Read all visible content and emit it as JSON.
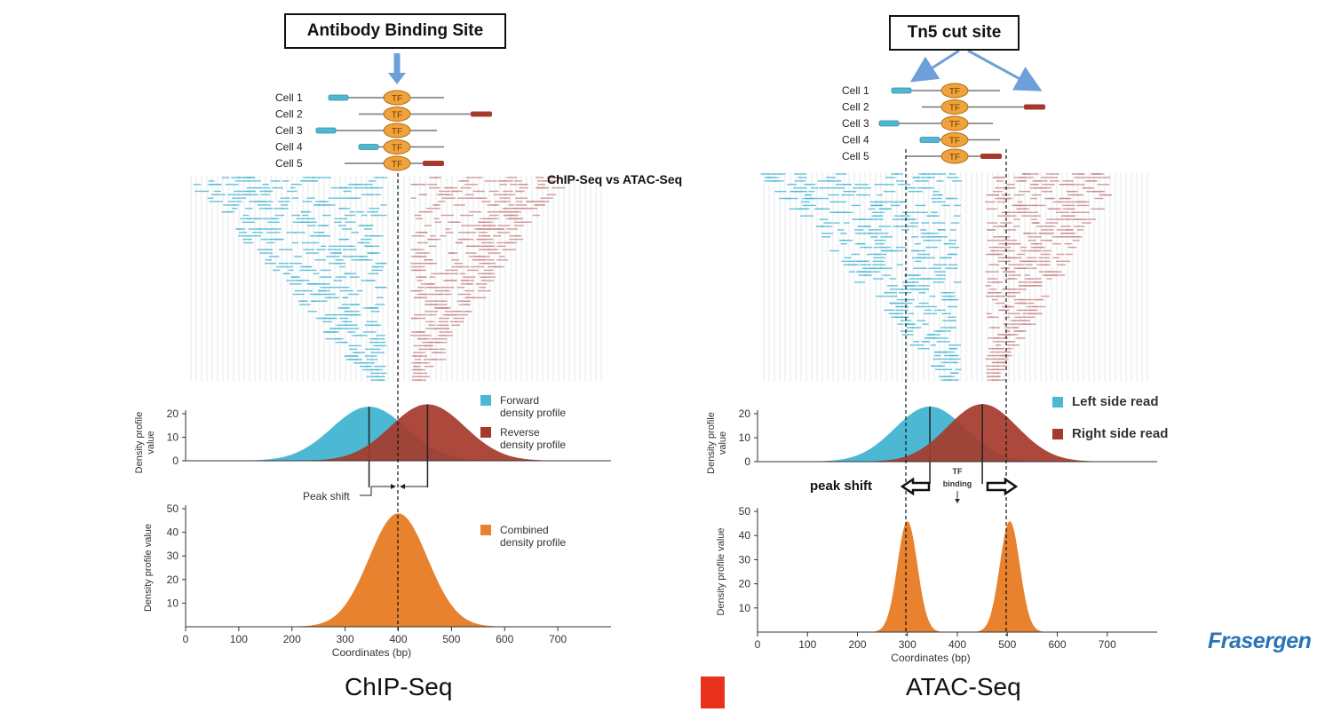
{
  "left": {
    "title_box": "Antibody Binding Site",
    "overlay_label": "ChIP-Seq vs ATAC-Seq",
    "cells": [
      "Cell 1",
      "Cell 2",
      "Cell 3",
      "Cell 4",
      "Cell 5"
    ],
    "tf_label": "TF",
    "legend_forward": [
      "Forward",
      "density profile"
    ],
    "legend_reverse": [
      "Reverse",
      "density profile"
    ],
    "legend_combined": [
      "Combined",
      "density profile"
    ],
    "density_ylabel": [
      "Density profile",
      "value"
    ],
    "combined_ylabel": "Density profile value",
    "peak_shift": "Peak shift",
    "xlabel": "Coordinates (bp)",
    "bottom_title": "ChIP-Seq"
  },
  "right": {
    "title_box": "Tn5 cut site",
    "cells": [
      "Cell 1",
      "Cell 2",
      "Cell 3",
      "Cell 4",
      "Cell 5"
    ],
    "tf_label": "TF",
    "legend_left": "Left side read",
    "legend_right": "Right side read",
    "density_ylabel": [
      "Density profile",
      "value"
    ],
    "combined_ylabel": "Density profile value",
    "peak_shift": "peak shift",
    "tf_binding": [
      "TF",
      "binding"
    ],
    "xlabel": "Coordinates (bp)",
    "bottom_title": "ATAC-Seq"
  },
  "density_ticks": [
    "0",
    "10",
    "20"
  ],
  "combined_ticks": [
    "10",
    "20",
    "30",
    "40",
    "50"
  ],
  "x_ticks": [
    "0",
    "100",
    "200",
    "300",
    "400",
    "500",
    "600",
    "700"
  ],
  "logo": "Frasergen",
  "colors": {
    "forward": "#4cb8d4",
    "reverse": "#a53a2b",
    "combined": "#e8822e",
    "tf_oval": "#f0a33c",
    "arrow": "#6f9fd8",
    "red_square": "#e8321e",
    "logo": "#2a73b6"
  },
  "chart_data": [
    {
      "type": "area",
      "panel": "ChIP-Seq strand density",
      "xlabel": "Coordinates (bp)",
      "ylabel": "Density profile value",
      "xlim": [
        0,
        800
      ],
      "ylim": [
        0,
        25
      ],
      "series": [
        {
          "name": "Forward density profile",
          "peak_x": 345,
          "peak_y": 23,
          "sd": 70
        },
        {
          "name": "Reverse density profile",
          "peak_x": 455,
          "peak_y": 24,
          "sd": 70
        }
      ]
    },
    {
      "type": "area",
      "panel": "ChIP-Seq combined",
      "xlabel": "Coordinates (bp)",
      "ylabel": "Density profile value",
      "xlim": [
        0,
        800
      ],
      "ylim": [
        0,
        50
      ],
      "series": [
        {
          "name": "Combined density profile",
          "peak_x": 400,
          "peak_y": 48,
          "sd": 55
        }
      ]
    },
    {
      "type": "area",
      "panel": "ATAC-Seq strand density",
      "xlabel": "Coordinates (bp)",
      "ylabel": "Density profile value",
      "xlim": [
        0,
        800
      ],
      "ylim": [
        0,
        25
      ],
      "series": [
        {
          "name": "Left side read",
          "peak_x": 345,
          "peak_y": 23,
          "sd": 70
        },
        {
          "name": "Right side read",
          "peak_x": 450,
          "peak_y": 24,
          "sd": 70
        }
      ]
    },
    {
      "type": "area",
      "panel": "ATAC-Seq combined",
      "xlabel": "Coordinates (bp)",
      "ylabel": "Density profile value",
      "xlim": [
        0,
        800
      ],
      "ylim": [
        0,
        50
      ],
      "series": [
        {
          "peak_x": 300,
          "peak_y": 46,
          "sd": 20
        },
        {
          "peak_x": 505,
          "peak_y": 46,
          "sd": 20
        }
      ]
    }
  ]
}
